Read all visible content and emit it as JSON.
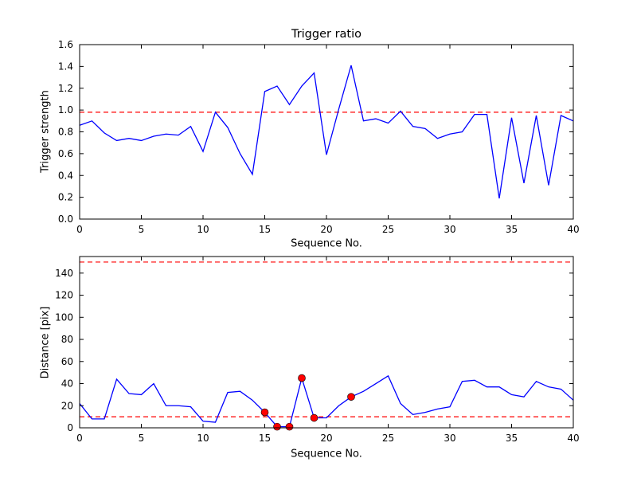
{
  "figure": {
    "background": "#ffffff",
    "frame_color": "#000000"
  },
  "chart_data": [
    {
      "type": "line",
      "title": "Trigger ratio",
      "xlabel": "Sequence No.",
      "ylabel": "Trigger strength",
      "xlim": [
        0,
        40
      ],
      "ylim": [
        0.0,
        1.6
      ],
      "xticks": [
        0,
        5,
        10,
        15,
        20,
        25,
        30,
        35,
        40
      ],
      "xtick_labels": [
        "0",
        "5",
        "10",
        "15",
        "20",
        "25",
        "30",
        "35",
        "40"
      ],
      "yticks": [
        0.0,
        0.2,
        0.4,
        0.6,
        0.8,
        1.0,
        1.2,
        1.4,
        1.6
      ],
      "ytick_labels": [
        "0.0",
        "0.2",
        "0.4",
        "0.6",
        "0.8",
        "1.0",
        "1.2",
        "1.4",
        "1.6"
      ],
      "grid": false,
      "legend": "none",
      "line_color": "#0000ff",
      "x": [
        0,
        1,
        2,
        3,
        4,
        5,
        6,
        7,
        8,
        9,
        10,
        11,
        12,
        13,
        14,
        15,
        16,
        17,
        18,
        19,
        20,
        21,
        22,
        23,
        24,
        25,
        26,
        27,
        28,
        29,
        30,
        31,
        32,
        33,
        34,
        35,
        36,
        37,
        38,
        39,
        40
      ],
      "values": [
        0.86,
        0.9,
        0.79,
        0.72,
        0.74,
        0.72,
        0.76,
        0.78,
        0.77,
        0.85,
        0.62,
        0.98,
        0.84,
        0.6,
        0.41,
        1.17,
        1.22,
        1.05,
        1.22,
        1.34,
        0.59,
        1.01,
        1.41,
        0.9,
        0.92,
        0.88,
        0.99,
        0.85,
        0.83,
        0.74,
        0.78,
        0.8,
        0.96,
        0.96,
        0.19,
        0.93,
        0.33,
        0.95,
        0.31,
        0.95,
        0.9
      ],
      "threshold_lines": [
        {
          "y": 0.98,
          "color": "#ff0000",
          "style": "dashed"
        }
      ]
    },
    {
      "type": "line",
      "title": "",
      "xlabel": "Sequence No.",
      "ylabel": "Distance [pix]",
      "xlim": [
        0,
        40
      ],
      "ylim": [
        0,
        155
      ],
      "xticks": [
        0,
        5,
        10,
        15,
        20,
        25,
        30,
        35,
        40
      ],
      "xtick_labels": [
        "0",
        "5",
        "10",
        "15",
        "20",
        "25",
        "30",
        "35",
        "40"
      ],
      "yticks": [
        0,
        20,
        40,
        60,
        80,
        100,
        120,
        140
      ],
      "ytick_labels": [
        "0",
        "20",
        "40",
        "60",
        "80",
        "100",
        "120",
        "140"
      ],
      "grid": false,
      "legend": "none",
      "line_color": "#0000ff",
      "x": [
        0,
        1,
        2,
        3,
        4,
        5,
        6,
        7,
        8,
        9,
        10,
        11,
        12,
        13,
        14,
        15,
        16,
        17,
        18,
        19,
        20,
        21,
        22,
        23,
        24,
        25,
        26,
        27,
        28,
        29,
        30,
        31,
        32,
        33,
        34,
        35,
        36,
        37,
        38,
        39,
        40
      ],
      "values": [
        22,
        8,
        8,
        44,
        31,
        30,
        40,
        20,
        20,
        19,
        6,
        5,
        32,
        33,
        25,
        14,
        1,
        1,
        45,
        9,
        9,
        20,
        28,
        33,
        40,
        47,
        22,
        12,
        14,
        17,
        19,
        42,
        43,
        37,
        37,
        30,
        28,
        42,
        37,
        35,
        25
      ],
      "threshold_lines": [
        {
          "y": 150,
          "color": "#ff0000",
          "style": "dashed"
        },
        {
          "y": 10,
          "color": "#ff0000",
          "style": "dashed"
        }
      ],
      "scatter": {
        "x": [
          15,
          16,
          17,
          18,
          19,
          22
        ],
        "y": [
          14,
          1,
          1,
          45,
          9,
          28
        ],
        "color": "#ff0000",
        "edge_color": "#000000"
      }
    }
  ]
}
